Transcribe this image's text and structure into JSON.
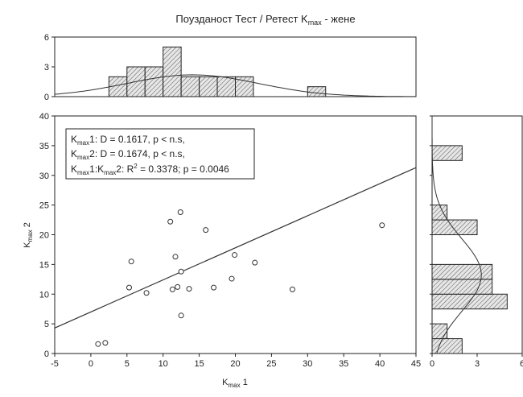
{
  "title": {
    "main": "Поузданост Тест / Ретест K",
    "sub": "max",
    "tail": " - жене"
  },
  "chart_data": [
    {
      "name": "scatter",
      "type": "scatter",
      "xlabel": {
        "main": "K",
        "sub": "max",
        "tail": " 1"
      },
      "ylabel": {
        "main": "K",
        "sub": "max",
        "tail": " 2"
      },
      "xlim": [
        -5,
        45
      ],
      "ylim": [
        0,
        40
      ],
      "xticks": [
        -5,
        0,
        5,
        10,
        15,
        20,
        25,
        30,
        35,
        40,
        45
      ],
      "yticks": [
        0,
        5,
        10,
        15,
        20,
        25,
        30,
        35,
        40
      ],
      "points": [
        [
          1.0,
          1.6
        ],
        [
          2.0,
          1.8
        ],
        [
          5.3,
          11.1
        ],
        [
          5.6,
          15.5
        ],
        [
          7.7,
          10.2
        ],
        [
          11.0,
          22.2
        ],
        [
          11.3,
          10.8
        ],
        [
          11.7,
          16.3
        ],
        [
          12.0,
          11.2
        ],
        [
          12.4,
          23.8
        ],
        [
          12.5,
          13.8
        ],
        [
          12.5,
          6.4
        ],
        [
          13.6,
          10.9
        ],
        [
          15.9,
          20.8
        ],
        [
          17.0,
          11.1
        ],
        [
          19.5,
          12.6
        ],
        [
          19.9,
          16.6
        ],
        [
          22.7,
          15.3
        ],
        [
          27.9,
          10.8
        ],
        [
          40.3,
          21.6
        ]
      ],
      "regression_line": [
        [
          -5,
          4.3
        ],
        [
          45,
          31.3
        ]
      ]
    },
    {
      "name": "top-histogram",
      "type": "bar",
      "orientation": "vertical",
      "bins": [
        [
          0,
          2.5
        ],
        [
          2.5,
          5
        ],
        [
          5,
          7.5
        ],
        [
          7.5,
          10
        ],
        [
          10,
          12.5
        ],
        [
          12.5,
          15
        ],
        [
          15,
          17.5
        ],
        [
          17.5,
          20
        ],
        [
          20,
          22.5
        ],
        [
          22.5,
          25
        ],
        [
          25,
          27.5
        ],
        [
          27.5,
          30
        ],
        [
          30,
          32.5
        ],
        [
          32.5,
          35
        ],
        [
          35,
          37.5
        ],
        [
          37.5,
          40
        ],
        [
          40,
          42.5
        ]
      ],
      "values": [
        0,
        2,
        3,
        3,
        5,
        2,
        2,
        2,
        2,
        0,
        0,
        0,
        1,
        0,
        0,
        0,
        0
      ],
      "ylim": [
        0,
        6
      ],
      "yticks": [
        0,
        3,
        6
      ],
      "note": "bar positions follow x-axis of scatter"
    },
    {
      "name": "right-histogram",
      "type": "bar",
      "orientation": "horizontal",
      "bins": [
        [
          0,
          2.5
        ],
        [
          2.5,
          5
        ],
        [
          5,
          7.5
        ],
        [
          7.5,
          10
        ],
        [
          10,
          12.5
        ],
        [
          12.5,
          15
        ],
        [
          15,
          17.5
        ],
        [
          17.5,
          20
        ],
        [
          20,
          22.5
        ],
        [
          22.5,
          25
        ],
        [
          25,
          27.5
        ],
        [
          27.5,
          30
        ],
        [
          30,
          32.5
        ],
        [
          32.5,
          35
        ],
        [
          35,
          37.5
        ]
      ],
      "values": [
        2,
        1,
        0,
        5,
        4,
        4,
        0,
        0,
        3,
        1,
        0,
        0,
        0,
        2,
        0
      ],
      "xlim": [
        0,
        6
      ],
      "xticks": [
        0,
        3,
        6
      ]
    }
  ],
  "legend": {
    "lines": [
      [
        {
          "t": "K"
        },
        {
          "t": "max",
          "sub": true
        },
        {
          "t": "1: D = 0.1617, p < n.s,"
        }
      ],
      [
        {
          "t": "K"
        },
        {
          "t": "max",
          "sub": true
        },
        {
          "t": "2:  D = 0.1674, p < n.s,"
        }
      ],
      [
        {
          "t": "K"
        },
        {
          "t": "max",
          "sub": true
        },
        {
          "t": "1:K"
        },
        {
          "t": "max",
          "sub": true
        },
        {
          "t": "2:  R"
        },
        {
          "t": "2",
          "sup": true
        },
        {
          "t": " = 0.3378; p = 0.0046"
        }
      ]
    ]
  },
  "colors": {
    "axis": "#222222",
    "bar_fill": "#e6e6e6",
    "hatch": "#555555",
    "marker": "#333333",
    "line": "#333333"
  }
}
